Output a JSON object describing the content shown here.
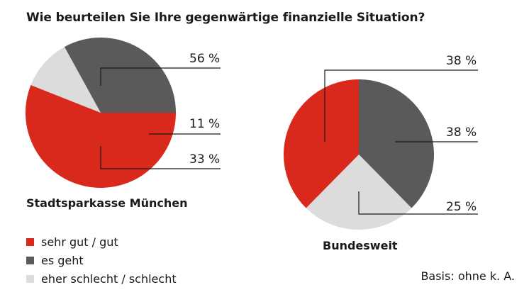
{
  "title": "Wie beurteilen Sie Ihre gegenwärtige finanzielle Situation?",
  "basis": "Basis: ohne k. A.",
  "legend": [
    {
      "label": "sehr gut / gut",
      "color": "#d9291c"
    },
    {
      "label": "es geht",
      "color": "#5a5a5a"
    },
    {
      "label": "eher schlecht / schlecht",
      "color": "#dcdcdc"
    }
  ],
  "chart_data": [
    {
      "type": "pie",
      "title": "Stadtsparkasse München",
      "slices": [
        {
          "label": "sehr gut / gut",
          "value": 56,
          "value_label": "56 %",
          "color": "#d9291c"
        },
        {
          "label": "eher schlecht / schlecht",
          "value": 11,
          "value_label": "11 %",
          "color": "#dcdcdc"
        },
        {
          "label": "es geht",
          "value": 33,
          "value_label": "33 %",
          "color": "#5a5a5a"
        }
      ]
    },
    {
      "type": "pie",
      "title": "Bundesweit",
      "slices": [
        {
          "label": "es geht",
          "value": 38,
          "value_label": "38 %",
          "color": "#5a5a5a"
        },
        {
          "label": "eher schlecht / schlecht",
          "value": 25,
          "value_label": "25 %",
          "color": "#dcdcdc"
        },
        {
          "label": "sehr gut / gut",
          "value": 38,
          "value_label": "38 %",
          "color": "#d9291c"
        }
      ]
    }
  ]
}
